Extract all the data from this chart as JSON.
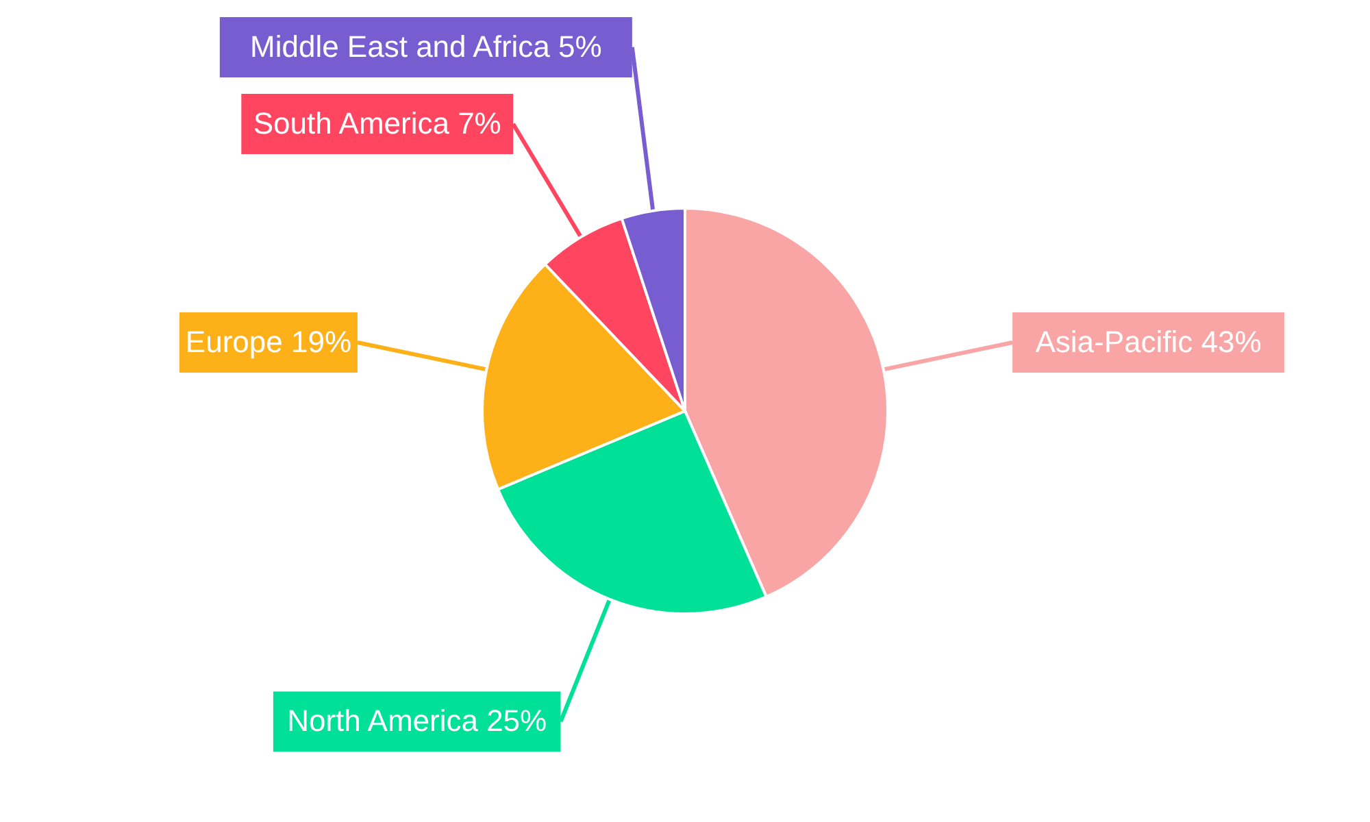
{
  "chart_data": {
    "type": "pie",
    "categories": [
      "Asia-Pacific",
      "North America",
      "Europe",
      "South America",
      "Middle East and Africa"
    ],
    "values": [
      43,
      25,
      19,
      7,
      5
    ],
    "value_labels": [
      "43%",
      "25%",
      "19%",
      "7%",
      "5%"
    ],
    "colors": [
      "#f9a5a5",
      "#00e096",
      "#feb019",
      "#ff4560",
      "#775dd0"
    ]
  }
}
